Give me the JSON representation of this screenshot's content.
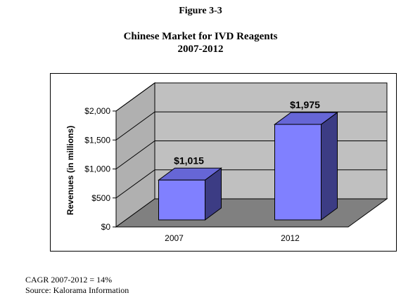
{
  "figure_label": "Figure 3-3",
  "chart_data": {
    "type": "bar",
    "title": "Chinese Market for IVD Reagents",
    "subtitle": "2007-2012",
    "categories": [
      "2007",
      "2012"
    ],
    "values": [
      1015,
      1975
    ],
    "data_labels": [
      "$1,015",
      "$1,975"
    ],
    "ylabel": "Revenues (in millions)",
    "ylim": [
      0,
      2000
    ],
    "yticks": [
      0,
      500,
      1000,
      1500,
      2000
    ],
    "ytick_labels": [
      "$0",
      "$500",
      "$1,000",
      "$1,500",
      "$2,000"
    ],
    "grid": false,
    "legend": "none",
    "style": "3d",
    "colors": {
      "bar_front": "#8080ff",
      "bar_side": "#3c3c84",
      "bar_top": "#6666d6",
      "back_wall": "#c0c0c0",
      "side_wall": "#b0b0b0",
      "floor": "#808080"
    }
  },
  "footer": {
    "cagr": "CAGR 2007-2012 = 14%",
    "source": "Source: Kalorama Information"
  }
}
